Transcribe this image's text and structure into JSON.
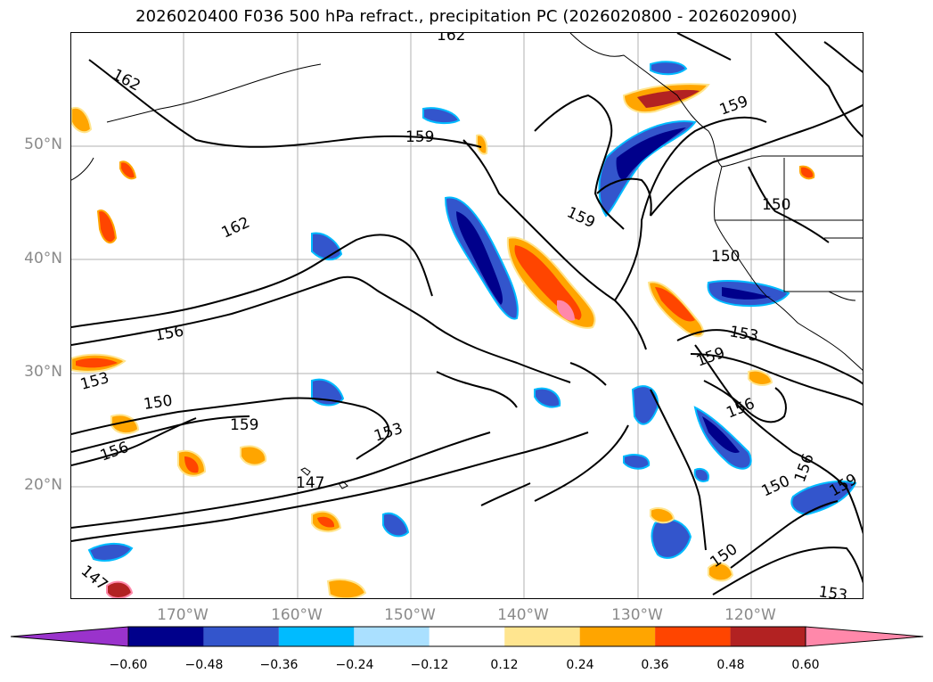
{
  "title": "2026020400 F036 500 hPa refract., precipitation PC (2026020800 - 2026020900)",
  "lat_labels": [
    "50°N",
    "40°N",
    "30°N",
    "20°N"
  ],
  "lon_labels": [
    "170°W",
    "160°W",
    "150°W",
    "140°W",
    "130°W",
    "120°W"
  ],
  "colorbar": {
    "colors": [
      "#9a33cc",
      "#00008b",
      "#3355cc",
      "#00bbff",
      "#aae0ff",
      "#ffffff",
      "#ffe58f",
      "#ffa500",
      "#ff4500",
      "#b22222",
      "#ff88aa"
    ],
    "ticks": [
      "−0.60",
      "−0.48",
      "−0.36",
      "−0.24",
      "−0.12",
      "0.12",
      "0.24",
      "0.36",
      "0.48",
      "0.60"
    ]
  },
  "contour_labels": [
    "162",
    "162",
    "159",
    "162",
    "159",
    "159",
    "150",
    "150",
    "156",
    "153",
    "153",
    "159",
    "150",
    "159",
    "153",
    "156",
    "147",
    "156",
    "150",
    "150",
    "153",
    "156",
    "147",
    "159"
  ]
}
